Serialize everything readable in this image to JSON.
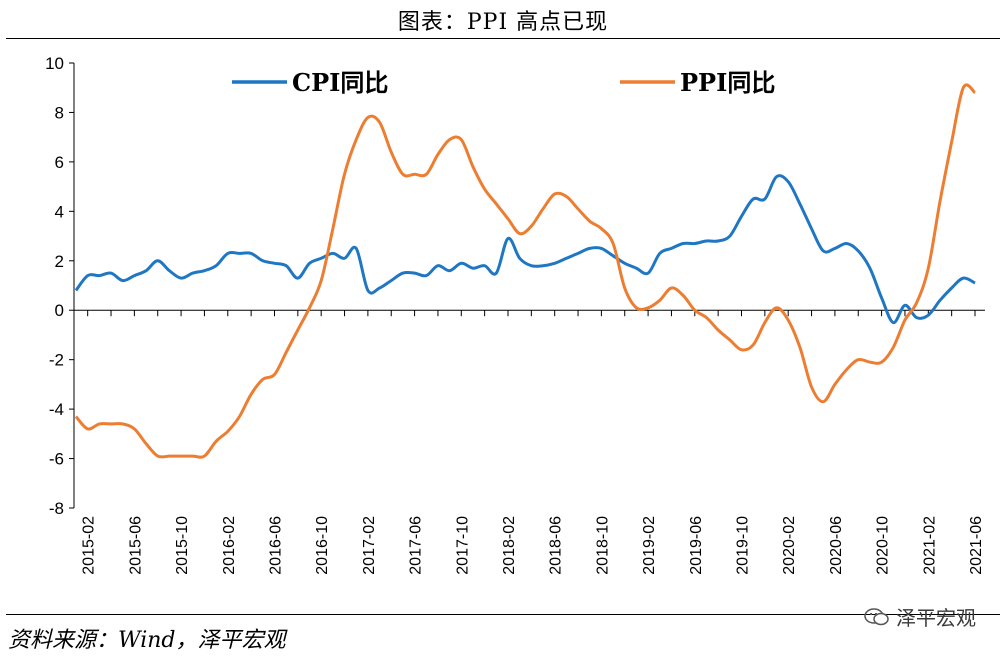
{
  "title": "图表：PPI 高点已现",
  "source": "资料来源：Wind，泽平宏观",
  "watermark": "泽平宏观",
  "colors": {
    "cpi": "#1f77c4",
    "ppi": "#ed7d31"
  },
  "chart_data": {
    "type": "line",
    "ylim": [
      -8,
      10
    ],
    "yticks": [
      -8,
      -6,
      -4,
      -2,
      0,
      2,
      4,
      6,
      8,
      10
    ],
    "x_tick_labels": [
      "2015-02",
      "2015-06",
      "2015-10",
      "2016-02",
      "2016-06",
      "2016-10",
      "2017-02",
      "2017-06",
      "2017-10",
      "2018-02",
      "2018-06",
      "2018-10",
      "2019-02",
      "2019-06",
      "2019-10",
      "2020-02",
      "2020-06",
      "2020-10",
      "2021-02",
      "2021-06"
    ],
    "x": [
      "2015-01",
      "2015-02",
      "2015-03",
      "2015-04",
      "2015-05",
      "2015-06",
      "2015-07",
      "2015-08",
      "2015-09",
      "2015-10",
      "2015-11",
      "2015-12",
      "2016-01",
      "2016-02",
      "2016-03",
      "2016-04",
      "2016-05",
      "2016-06",
      "2016-07",
      "2016-08",
      "2016-09",
      "2016-10",
      "2016-11",
      "2016-12",
      "2017-01",
      "2017-02",
      "2017-03",
      "2017-04",
      "2017-05",
      "2017-06",
      "2017-07",
      "2017-08",
      "2017-09",
      "2017-10",
      "2017-11",
      "2017-12",
      "2018-01",
      "2018-02",
      "2018-03",
      "2018-04",
      "2018-05",
      "2018-06",
      "2018-07",
      "2018-08",
      "2018-09",
      "2018-10",
      "2018-11",
      "2018-12",
      "2019-01",
      "2019-02",
      "2019-03",
      "2019-04",
      "2019-05",
      "2019-06",
      "2019-07",
      "2019-08",
      "2019-09",
      "2019-10",
      "2019-11",
      "2019-12",
      "2020-01",
      "2020-02",
      "2020-03",
      "2020-04",
      "2020-05",
      "2020-06",
      "2020-07",
      "2020-08",
      "2020-09",
      "2020-10",
      "2020-11",
      "2020-12",
      "2021-01",
      "2021-02",
      "2021-03",
      "2021-04",
      "2021-05",
      "2021-06"
    ],
    "series": [
      {
        "name": "CPI同比",
        "values": [
          0.8,
          1.4,
          1.4,
          1.5,
          1.2,
          1.4,
          1.6,
          2.0,
          1.6,
          1.3,
          1.5,
          1.6,
          1.8,
          2.3,
          2.3,
          2.3,
          2.0,
          1.9,
          1.8,
          1.3,
          1.9,
          2.1,
          2.3,
          2.1,
          2.5,
          0.8,
          0.9,
          1.2,
          1.5,
          1.5,
          1.4,
          1.8,
          1.6,
          1.9,
          1.7,
          1.8,
          1.5,
          2.9,
          2.1,
          1.8,
          1.8,
          1.9,
          2.1,
          2.3,
          2.5,
          2.5,
          2.2,
          1.9,
          1.7,
          1.5,
          2.3,
          2.5,
          2.7,
          2.7,
          2.8,
          2.8,
          3.0,
          3.8,
          4.5,
          4.5,
          5.4,
          5.2,
          4.3,
          3.3,
          2.4,
          2.5,
          2.7,
          2.4,
          1.7,
          0.5,
          -0.5,
          0.2,
          -0.3,
          -0.2,
          0.4,
          0.9,
          1.3,
          1.1
        ]
      },
      {
        "name": "PPI同比",
        "values": [
          -4.3,
          -4.8,
          -4.6,
          -4.6,
          -4.6,
          -4.8,
          -5.4,
          -5.9,
          -5.9,
          -5.9,
          -5.9,
          -5.9,
          -5.3,
          -4.9,
          -4.3,
          -3.4,
          -2.8,
          -2.6,
          -1.7,
          -0.8,
          0.1,
          1.2,
          3.3,
          5.5,
          6.9,
          7.8,
          7.6,
          6.4,
          5.5,
          5.5,
          5.5,
          6.3,
          6.9,
          6.9,
          5.8,
          4.9,
          4.3,
          3.7,
          3.1,
          3.4,
          4.1,
          4.7,
          4.6,
          4.1,
          3.6,
          3.3,
          2.7,
          0.9,
          0.1,
          0.1,
          0.4,
          0.9,
          0.6,
          0.0,
          -0.3,
          -0.8,
          -1.2,
          -1.6,
          -1.4,
          -0.5,
          0.1,
          -0.4,
          -1.5,
          -3.1,
          -3.7,
          -3.0,
          -2.4,
          -2.0,
          -2.1,
          -2.1,
          -1.5,
          -0.4,
          0.3,
          1.7,
          4.4,
          6.8,
          9.0,
          8.8
        ]
      }
    ]
  }
}
